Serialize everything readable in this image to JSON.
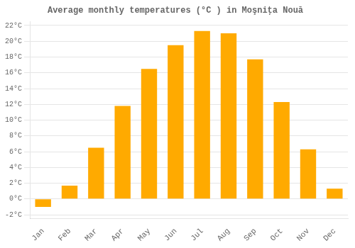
{
  "chart_data": {
    "type": "bar",
    "title": "Average monthly temperatures (°C ) in Moşniţa Nouă",
    "categories": [
      "Jan",
      "Feb",
      "Mar",
      "Apr",
      "May",
      "Jun",
      "Jul",
      "Aug",
      "Sep",
      "Oct",
      "Nov",
      "Dec"
    ],
    "values": [
      -1.0,
      1.7,
      6.5,
      11.8,
      16.5,
      19.5,
      21.3,
      21.0,
      17.7,
      12.3,
      6.3,
      1.3
    ],
    "color": "#FFAA00",
    "ylim": [
      -2.5,
      22.5
    ],
    "yticks": [
      {
        "value": -2,
        "label": "-2°C"
      },
      {
        "value": 0,
        "label": "0°C"
      },
      {
        "value": 2,
        "label": "2°C"
      },
      {
        "value": 4,
        "label": "4°C"
      },
      {
        "value": 6,
        "label": "6°C"
      },
      {
        "value": 8,
        "label": "8°C"
      },
      {
        "value": 10,
        "label": "10°C"
      },
      {
        "value": 12,
        "label": "12°C"
      },
      {
        "value": 14,
        "label": "14°C"
      },
      {
        "value": 16,
        "label": "16°C"
      },
      {
        "value": 18,
        "label": "18°C"
      },
      {
        "value": 20,
        "label": "20°C"
      },
      {
        "value": 22,
        "label": "22°C"
      }
    ],
    "grid": true
  }
}
